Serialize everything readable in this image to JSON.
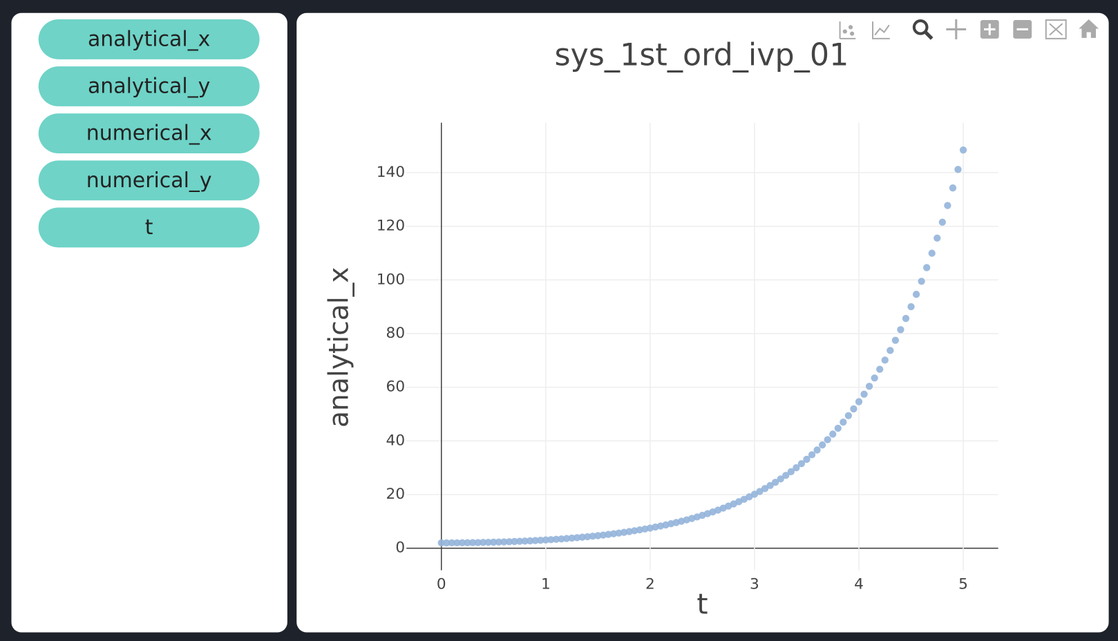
{
  "sidebar": {
    "buttons": [
      "analytical_x",
      "analytical_y",
      "numerical_x",
      "numerical_y",
      "t"
    ]
  },
  "chart_data": {
    "type": "scatter",
    "title": "sys_1st_ord_ivp_01",
    "x_label": "t",
    "y_label": "analytical_x",
    "color": "#93b4da",
    "grid": true,
    "x": [
      0,
      0.05,
      0.1,
      0.15,
      0.2,
      0.25,
      0.3,
      0.35,
      0.4,
      0.45,
      0.5,
      0.55,
      0.6,
      0.65,
      0.7,
      0.75,
      0.8,
      0.85,
      0.9,
      0.95,
      1,
      1.05,
      1.1,
      1.15,
      1.2,
      1.25,
      1.3,
      1.35,
      1.4,
      1.45,
      1.5,
      1.55,
      1.6,
      1.65,
      1.7,
      1.75,
      1.8,
      1.85,
      1.9,
      1.95,
      2,
      2.05,
      2.1,
      2.15,
      2.2,
      2.25,
      2.3,
      2.35,
      2.4,
      2.45,
      2.5,
      2.55,
      2.6,
      2.65,
      2.7,
      2.75,
      2.8,
      2.85,
      2.9,
      2.95,
      3,
      3.05,
      3.1,
      3.15,
      3.2,
      3.25,
      3.3,
      3.35,
      3.4,
      3.45,
      3.5,
      3.55,
      3.6,
      3.65,
      3.7,
      3.75,
      3.8,
      3.85,
      3.9,
      3.95,
      4,
      4.05,
      4.1,
      4.15,
      4.2,
      4.25,
      4.3,
      4.35,
      4.4,
      4.45,
      4.5,
      4.55,
      4.6,
      4.65,
      4.7,
      4.75,
      4.8,
      4.85,
      4.9,
      4.95,
      5
    ],
    "values": [
      2.0,
      2.0,
      2.01,
      2.02,
      2.04,
      2.06,
      2.09,
      2.12,
      2.16,
      2.21,
      2.26,
      2.31,
      2.37,
      2.44,
      2.51,
      2.59,
      2.67,
      2.77,
      2.87,
      2.97,
      3.09,
      3.21,
      3.34,
      3.47,
      3.62,
      3.78,
      3.94,
      4.12,
      4.3,
      4.5,
      4.7,
      4.92,
      5.15,
      5.4,
      5.66,
      5.93,
      6.21,
      6.52,
      6.84,
      7.17,
      7.52,
      7.9,
      8.29,
      8.7,
      9.14,
      9.59,
      10.07,
      10.58,
      11.11,
      11.67,
      12.26,
      12.89,
      13.54,
      14.22,
      14.95,
      15.71,
      16.51,
      17.35,
      18.23,
      19.16,
      20.14,
      21.16,
      22.24,
      23.38,
      24.57,
      25.83,
      27.15,
      28.54,
      30.0,
      31.53,
      33.15,
      34.84,
      36.62,
      38.5,
      40.47,
      42.54,
      44.72,
      47.01,
      49.42,
      51.95,
      54.62,
      57.41,
      60.36,
      63.45,
      66.7,
      70.12,
      73.71,
      77.49,
      81.46,
      85.64,
      90.03,
      94.64,
      99.49,
      104.59,
      109.96,
      115.59,
      121.52,
      127.75,
      134.3,
      141.18,
      148.42
    ],
    "xlim": [
      -0.335,
      5.335
    ],
    "xticks": [
      0,
      1,
      2,
      3,
      4,
      5
    ],
    "ylim": [
      -8.23,
      158.6
    ],
    "yticks": [
      0,
      20,
      40,
      60,
      80,
      100,
      120,
      140
    ]
  }
}
